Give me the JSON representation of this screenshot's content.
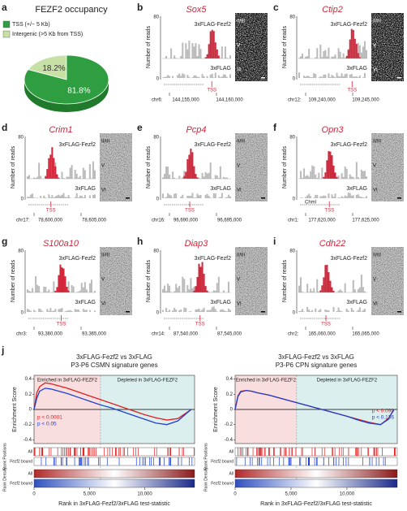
{
  "panel_a": {
    "letter": "a",
    "title": "FEZF2 occupancy",
    "legend": [
      "TSS (+/− 5 Kb)",
      "Intergenic (>5 Kb from TSS)"
    ],
    "colors": [
      "#2f9e40",
      "#c7e0a6"
    ],
    "values": [
      81.8,
      18.2
    ],
    "value_labels": [
      "81.8%",
      "18.2%"
    ]
  },
  "track_common": {
    "y_label": "Number of reads",
    "ytick_top": 80,
    "ytick_bottom": 0,
    "chip_label": "3xFLAG-Fezf2",
    "control_label": "3xFLAG",
    "tss_label": "TSS",
    "layers": [
      "II/III",
      "V",
      "VI"
    ]
  },
  "genes": [
    {
      "letter": "b",
      "name": "Sox5",
      "chrom": "chr6:",
      "start": "144,155,000",
      "end": "144,160,000"
    },
    {
      "letter": "c",
      "name": "Ctip2",
      "chrom": "chr12:",
      "start": "109,240,000",
      "end": "109,245,000"
    },
    {
      "letter": "d",
      "name": "Crim1",
      "chrom": "chr17:",
      "start": "78,600,000",
      "end": "78,605,000"
    },
    {
      "letter": "e",
      "name": "Pcp4",
      "chrom": "chr16:",
      "start": "96,690,000",
      "end": "96,695,000"
    },
    {
      "letter": "f",
      "name": "Opn3",
      "chrom": "chr1:",
      "start": "177,620,000",
      "end": "177,625,000",
      "extra": "Chml"
    },
    {
      "letter": "g",
      "name": "S100a10",
      "chrom": "chr3:",
      "start": "93,360,000",
      "end": "93,365,000"
    },
    {
      "letter": "h",
      "name": "Diap3",
      "chrom": "chr14:",
      "start": "87,540,000",
      "end": "87,545,000"
    },
    {
      "letter": "i",
      "name": "Cdh22",
      "chrom": "chr2:",
      "start": "165,060,000",
      "end": "165,065,000"
    }
  ],
  "panel_j": {
    "letter": "j",
    "xlabel": "Rank in 3xFLAG-Fezf2/3xFLAG test-statistic",
    "ylabel": "Enrichment Score",
    "rank_positions_label": "Rank Positions",
    "rank_density_label": "Rank Density",
    "row_all": "All",
    "row_bound": "Fezf2 bound",
    "enriched_label": "Enriched in 3xFLAG-FEZF2",
    "depleted_label": "Depleted in 3xFLAG-FEZF2",
    "xlim": [
      0,
      14500
    ],
    "ylim": [
      -0.45,
      0.45
    ],
    "yticks": [
      -0.4,
      -0.2,
      0,
      0.2,
      0.4
    ],
    "xticks": [
      0,
      {
        "value": 5000,
        "label": "5,000"
      },
      {
        "value": 10000,
        "label": "10,000"
      }
    ],
    "plots": [
      {
        "title": [
          "3xFLAG-Fezf2 vs 3xFLAG",
          "P3-P6 CSMN signature genes"
        ],
        "split": 6000,
        "x": [
          0,
          250,
          500,
          1000,
          1500,
          2000,
          3000,
          4000,
          5000,
          6000,
          7000,
          8000,
          9000,
          10000,
          11000,
          12000,
          13000,
          13700,
          14200
        ],
        "series": [
          {
            "color": "#e02020",
            "p_label": "p < 0.0001",
            "values": [
              0,
              0.22,
              0.3,
              0.35,
              0.34,
              0.32,
              0.28,
              0.23,
              0.18,
              0.13,
              0.08,
              0.03,
              -0.02,
              -0.07,
              -0.11,
              -0.14,
              -0.12,
              -0.05,
              0
            ]
          },
          {
            "color": "#2040d0",
            "p_label": "p < 0.05",
            "values": [
              0,
              0.15,
              0.24,
              0.28,
              0.27,
              0.25,
              0.21,
              0.16,
              0.11,
              0.06,
              0.02,
              -0.03,
              -0.08,
              -0.13,
              -0.18,
              -0.2,
              -0.15,
              -0.06,
              0
            ]
          }
        ]
      },
      {
        "title": [
          "3xFLAG-Fezf2 vs 3xFLAG",
          "P3-P6 CPN signature genes"
        ],
        "split": 5500,
        "x": [
          0,
          250,
          500,
          1000,
          1500,
          2000,
          3000,
          4000,
          5000,
          6000,
          7000,
          8000,
          9000,
          10000,
          11000,
          12000,
          13000,
          13700,
          14200
        ],
        "series": [
          {
            "color": "#e02020",
            "p_label": "p < 0.090",
            "values": [
              0,
              0.18,
              0.24,
              0.25,
              0.24,
              0.22,
              0.19,
              0.15,
              0.11,
              0.07,
              0.03,
              -0.01,
              -0.05,
              -0.09,
              -0.13,
              -0.17,
              -0.2,
              -0.12,
              0
            ]
          },
          {
            "color": "#2040d0",
            "p_label": "p < 0.136",
            "values": [
              0,
              0.17,
              0.23,
              0.25,
              0.24,
              0.22,
              0.19,
              0.15,
              0.11,
              0.07,
              0.03,
              -0.01,
              -0.05,
              -0.09,
              -0.14,
              -0.18,
              -0.2,
              -0.13,
              0
            ]
          }
        ]
      }
    ]
  }
}
